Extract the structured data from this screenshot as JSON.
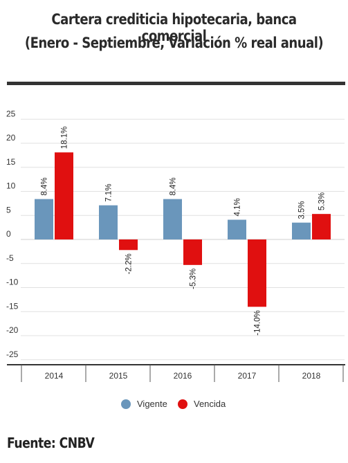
{
  "header": {
    "title_line1": "Cartera crediticia hipotecaria, banca comercial",
    "title_line2": "(Enero - Septiembre, Variación % real anual)"
  },
  "source": "Fuente: CNBV",
  "colors": {
    "vigente": "#6a96bb",
    "vencida": "#e01010",
    "grid": "#e0e0e0",
    "axis": "#333333"
  },
  "chart_data": {
    "type": "bar",
    "title": "Cartera crediticia hipotecaria, banca comercial",
    "subtitle": "(Enero - Septiembre, Variación % real anual)",
    "categories": [
      "2014",
      "2015",
      "2016",
      "2017",
      "2018"
    ],
    "series": [
      {
        "name": "Vigente",
        "color": "#6a96bb",
        "values": [
          8.4,
          7.1,
          8.4,
          4.1,
          3.5
        ],
        "labels": [
          "8.4%",
          "7.1%",
          "8.4%",
          "4.1%",
          "3.5%"
        ]
      },
      {
        "name": "Vencida",
        "color": "#e01010",
        "values": [
          18.1,
          -2.2,
          -5.3,
          -14.0,
          5.3
        ],
        "labels": [
          "18.1%",
          "-2.2%",
          "-5.3%",
          "-14.0%",
          "5.3%"
        ]
      }
    ],
    "yticks": [
      25,
      20,
      15,
      10,
      5,
      0,
      -5,
      -10,
      -15,
      -20,
      -25
    ],
    "ylim": [
      -27,
      27
    ],
    "grid": true,
    "legend": "bottom",
    "xlabel": "",
    "ylabel": ""
  }
}
